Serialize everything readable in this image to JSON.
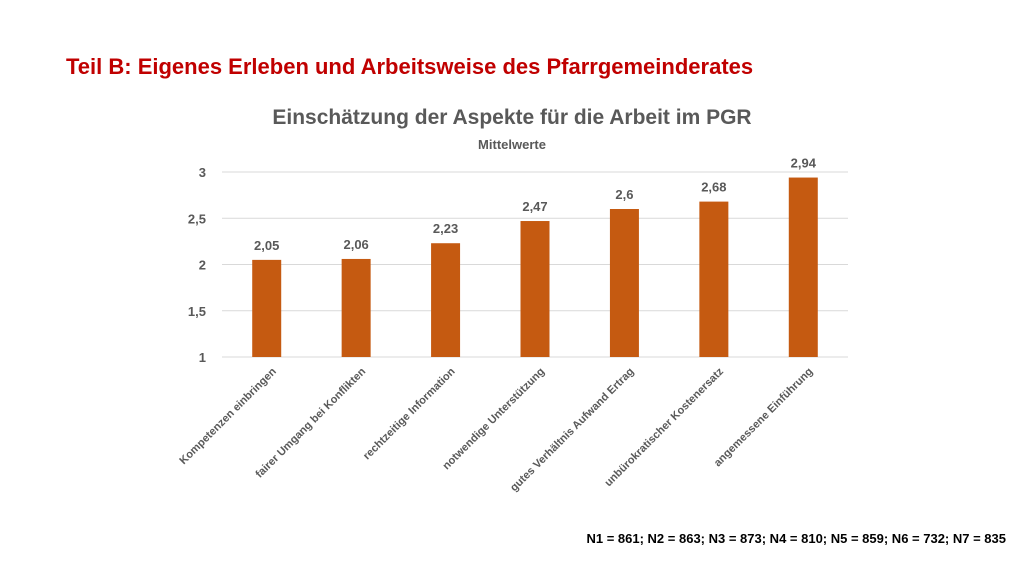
{
  "slide": {
    "title": "Teil B: Eigenes Erleben und Arbeitsweise des Pfarrgemeinderates",
    "note": "N1 = 861; N2 = 863; N3 = 873; N4 = 810; N5 = 859; N6 = 732; N7 = 835"
  },
  "colors": {
    "title": "#c00000",
    "bar": "#c55a11",
    "grid": "#d9d9d9",
    "text": "#595959"
  },
  "chart_data": {
    "type": "bar",
    "title": "Einschätzung der Aspekte für die Arbeit im PGR",
    "subtitle": "Mittelwerte",
    "xlabel": "",
    "ylabel": "",
    "ylim": [
      1,
      3
    ],
    "yticks": [
      1,
      1.5,
      2,
      2.5,
      3
    ],
    "ytick_labels": [
      "1",
      "1,5",
      "2",
      "2,5",
      "3"
    ],
    "grid": true,
    "categories": [
      "Kompetenzen einbringen",
      "fairer Umgang bei Konflikten",
      "rechtzeitige Information",
      "notwendige Unterstützung",
      "gutes Verhältnis Aufwand Ertrag",
      "unbürokratischer Kostenersatz",
      "angemessene Einführung"
    ],
    "values": [
      2.05,
      2.06,
      2.23,
      2.47,
      2.6,
      2.68,
      2.94
    ],
    "value_labels": [
      "2,05",
      "2,06",
      "2,23",
      "2,47",
      "2,6",
      "2,68",
      "2,94"
    ]
  }
}
